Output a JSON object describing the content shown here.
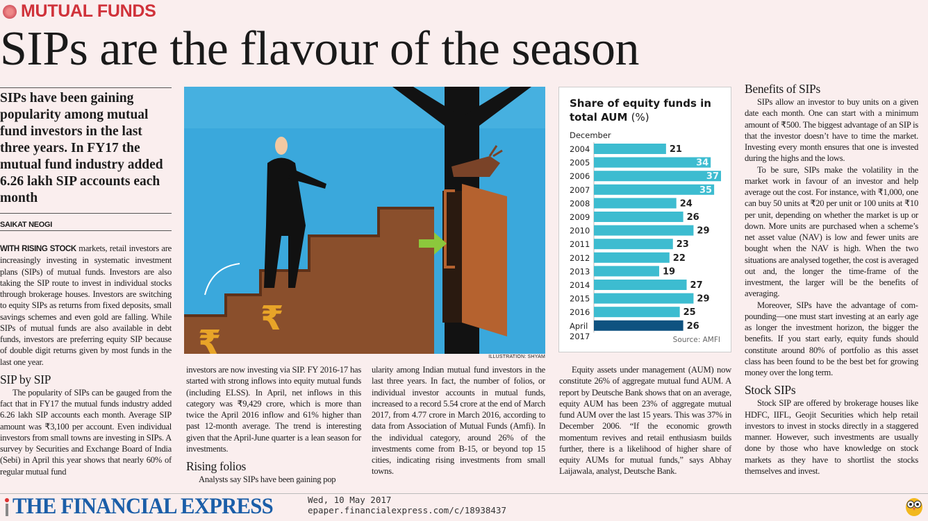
{
  "section": "MUTUAL FUNDS",
  "headline": "SIPs are the flavour of the season",
  "deck": "SIPs have been gaining popularity among mutual fund investors in the last three years. In FY17 the mutual fund industry added 6.26 lakh SIP accounts each month",
  "byline": "SAIKAT NEOGI",
  "col1": {
    "lead_in": "WITH RISING STOCK",
    "p1": " markets, retail investors are increasingly investing in systematic in­vestment plans (SIPs) of mutual funds. In­vestors are also taking the SIP route to invest in individual stocks through brokerage houses. Investors are switching to equity SIPs as re­turns from fixed deposits, small savings schemes and even gold are falling. While SIPs of mutual funds are also available in debt funds, investors are preferring equity SIP be­cause of double digit returns given by most funds in the last one year.",
    "sub1": "SIP by SIP",
    "p2": "The popularity of SIPs can be gauged from the fact that in FY17 the mutual funds indus­try added 6.26 lakh SIP accounts each month. Average SIP amount was ₹3,100 per account. Even individual investors from small towns are investing in SIPs. A survey by Securities and Ex­change Board of India (Sebi) in April this year shows that nearly 60% of regular mutual fund"
  },
  "col2": {
    "p1": "investors are now investing via SIP. FY 2016-17 has started with strong inflows into equity mutual funds (including ELSS). In April, net in­flows in this category was ₹9,429 crore, which is more than twice the April 2016 inflow and 61% higher than past 12-month average. The trend is interesting given that the April-June quarter is a lean season for investments.",
    "sub1": "Rising folios",
    "p2": "Analysts say SIPs have been gaining pop­"
  },
  "col3": {
    "p1": "ularity among Indian mutual fund investors in the last three years. In fact, the number of folios, or individual investor accounts in mutual funds, increased to a record 5.54 crore at the end of March 2017, from 4.77 crore in March 2016, according to data from Association of Mutual Funds (Amfi). In the individual category, around 26% of the investments come from B-15, or beyond top 15 cities, indicating rising investments from small towns."
  },
  "col4": {
    "p1": "Equity assets under management (AUM) now constitute 26% of aggregate mutual fund AUM. A report by Deutsche Bank shows that on an average, equity AUM has been 23% of ag­gregate mutual fund AUM over the last 15 years. This was 37% in December 2006. “If the economic growth momentum revives and retail enthusiasm builds further, there is a likelihood of higher share of equity AUMs for mutual funds,” says Abhay Laijawala, analyst, Deutsche Bank."
  },
  "col5": {
    "sub1": "Benefits of SIPs",
    "p1": "SIPs allow an investor to buy units on a given date each month. One can start with a minimum amount of ₹500. The biggest ad­vantage of an SIP is that the investor doesn’t have to time the market. Investing every month ensures that one is invested during the highs and the lows.",
    "p2": "To be sure, SIPs make the volatility in the market work in favour of an investor and help average out the cost. For instance, with ₹1,000, one can buy 50 units at ₹20 per unit or 100 units at ₹10 per unit, depending on whether the market is up or down. More units are pur­chased when a scheme’s net asset value (NAV) is low and fewer units are bought when the NAV is high. When the two situations are analysed together, the cost is averaged out and, the longer the time-frame of the investment, the larger will be the benefits of averaging.",
    "p3": "Moreover, SIPs have the advantage of com­pounding—one must start investing at an early age as longer the investment horizon, the bigger the benefits. If you start early, equity funds should constitute around 80% of port­folio as this asset class has been found to be the best bet for growing money over the long term.",
    "sub2": "Stock SIPs",
    "p4": "Stock SIP are offered by brokerage houses like HDFC, IIFL, Geojit Securities which help re­tail investors to invest in stocks directly in a staggered manner. However, such investments are usually done by those who have knowledge on stock markets as they have to shortlist the stocks themselves and invest."
  },
  "illustration_credit": "ILLUSTRATION: SHYAM",
  "chart_data": {
    "type": "bar",
    "orientation": "horizontal",
    "title": "Share of equity funds in total AUM",
    "title_unit": "(%)",
    "category_header": "December",
    "categories": [
      "2004",
      "2005",
      "2006",
      "2007",
      "2008",
      "2009",
      "2010",
      "2011",
      "2012",
      "2013",
      "2014",
      "2015",
      "2016",
      "April 2017"
    ],
    "values": [
      21,
      34,
      37,
      35,
      24,
      26,
      29,
      23,
      22,
      19,
      27,
      29,
      25,
      26
    ],
    "source": "Source: AMFI",
    "colors": {
      "bar": "#3dbcd0",
      "highlight": "#0e5280"
    },
    "highlight_category": "April 2017",
    "grid": false
  },
  "footer": {
    "logo": "THE FINANCIAL EXPRESS",
    "date": "Wed, 10 May 2017",
    "url": "epaper.financialexpress.com/c/18938437"
  }
}
